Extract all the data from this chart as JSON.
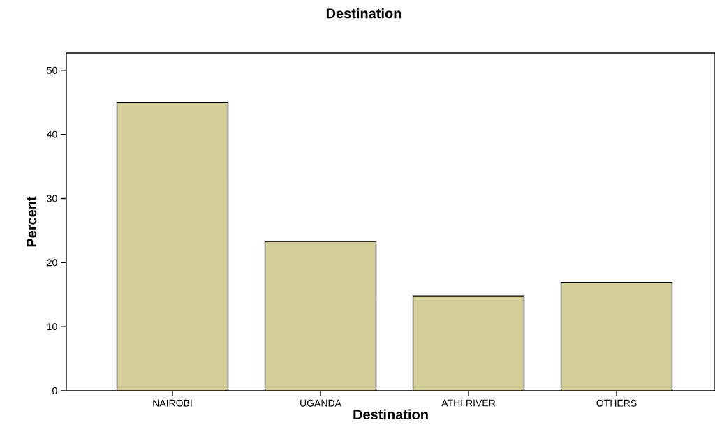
{
  "chart_data": {
    "type": "bar",
    "title": "Destination",
    "xlabel": "Destination",
    "ylabel": "Percent",
    "categories": [
      "NAIROBI",
      "UGANDA",
      "ATHI RIVER",
      "OTHERS"
    ],
    "values": [
      45.0,
      23.3,
      14.8,
      16.9
    ],
    "color": "#d3ce98",
    "ylim": [
      0,
      52.7
    ],
    "yticks": [
      0,
      10,
      20,
      30,
      40,
      50
    ],
    "grid": false
  }
}
